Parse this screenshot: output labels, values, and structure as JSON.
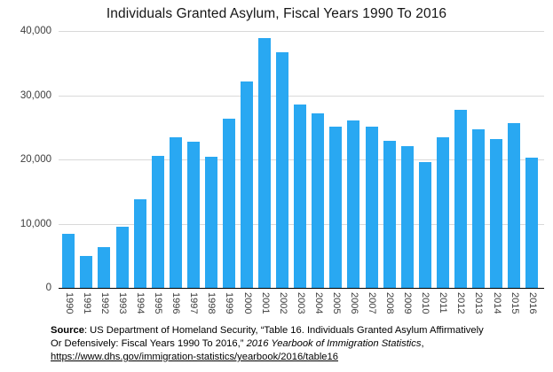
{
  "title": "Individuals Granted Asylum, Fiscal Years 1990 To 2016",
  "chart_data": {
    "type": "bar",
    "title": "Individuals Granted Asylum, Fiscal Years 1990 To 2016",
    "xlabel": "",
    "ylabel": "",
    "ylim": [
      0,
      40000
    ],
    "grid": "horizontal",
    "legend": "none",
    "x_label_rotation": 90,
    "bar_color": "#29a8f2",
    "y_ticks": [
      {
        "value": 40000,
        "label": "40,000"
      },
      {
        "value": 30000,
        "label": "30,000"
      },
      {
        "value": 20000,
        "label": "20,000"
      },
      {
        "value": 10000,
        "label": "10,000"
      },
      {
        "value": 0,
        "label": "0"
      }
    ],
    "categories": [
      "1990",
      "1991",
      "1992",
      "1993",
      "1994",
      "1995",
      "1996",
      "1997",
      "1998",
      "1999",
      "2000",
      "2001",
      "2002",
      "2003",
      "2004",
      "2005",
      "2006",
      "2007",
      "2008",
      "2009",
      "2010",
      "2011",
      "2012",
      "2013",
      "2014",
      "2015",
      "2016"
    ],
    "values": [
      8400,
      5000,
      6300,
      9500,
      13800,
      20600,
      23400,
      22800,
      20400,
      26300,
      32200,
      38900,
      36700,
      28600,
      27200,
      25100,
      26100,
      25100,
      22900,
      22100,
      19600,
      23400,
      27800,
      24700,
      23200,
      25600,
      20300
    ]
  },
  "source": {
    "line1_bold": "Source",
    "line1_rest": ": US Department of Homeland Security, “Table 16. Individuals Granted Asylum Affirmatively",
    "line2_normal": "Or Defensively: Fiscal Years 1990 To 2016,” ",
    "line2_italic": "2016 Yearbook of Immigration Statistics",
    "line2_tail": ",",
    "line3_link": "https://www.dhs.gov/immigration-statistics/yearbook/2016/table16"
  },
  "colors": {
    "bar": "#29a8f2",
    "gridline": "#d9d9d9",
    "axis": "#000000",
    "text": "#3d3d3d"
  }
}
